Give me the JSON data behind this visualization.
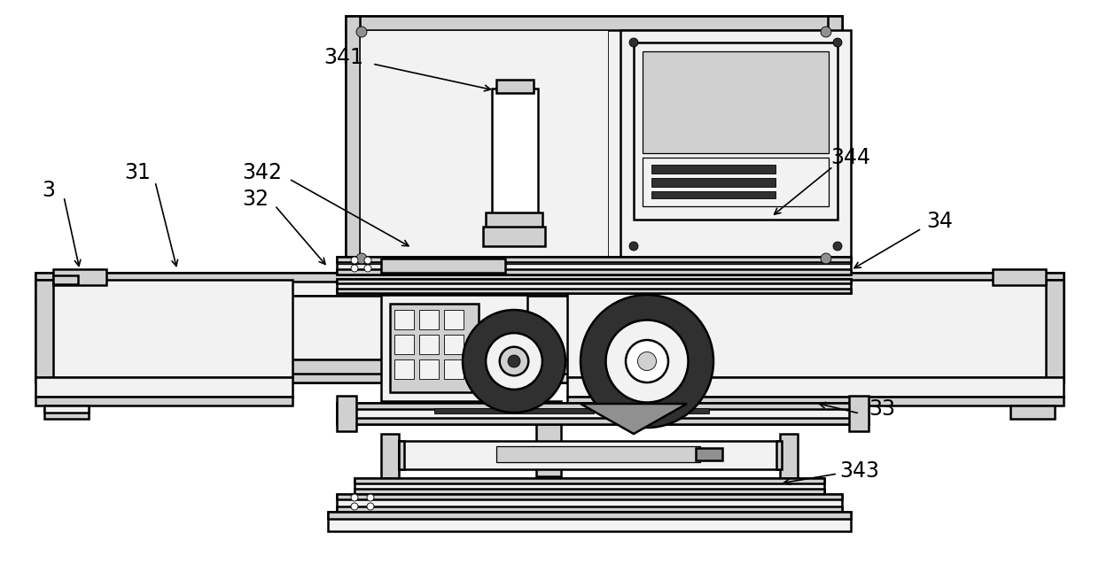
{
  "bg_color": "#ffffff",
  "lc": "#000000",
  "fl": "#f2f2f2",
  "fm": "#d0d0d0",
  "fd": "#909090",
  "fdd": "#303030",
  "lw": 1.8,
  "lwt": 0.9,
  "lws": 0.6,
  "fs": 17
}
